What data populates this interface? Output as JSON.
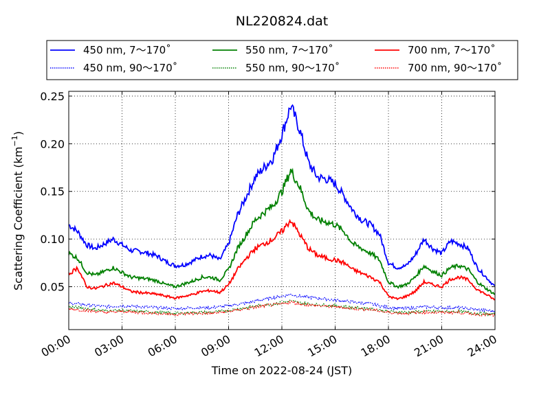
{
  "chart_data": {
    "type": "line",
    "title": "NL220824.dat",
    "xlabel": "Time on 2022-08-24 (JST)",
    "ylabel": "Scattering Coefficient (km",
    "ylabel_sup": "−1",
    "ylabel_end": ")",
    "xlim": [
      0,
      24
    ],
    "ylim": [
      0.005,
      0.255
    ],
    "x_ticks": [
      0,
      3,
      6,
      9,
      12,
      15,
      18,
      21,
      24
    ],
    "x_tick_labels": [
      "00:00",
      "03:00",
      "06:00",
      "09:00",
      "12:00",
      "15:00",
      "18:00",
      "21:00",
      "24:00"
    ],
    "y_ticks": [
      0.05,
      0.1,
      0.15,
      0.2,
      0.25
    ],
    "y_tick_labels": [
      "0.05",
      "0.10",
      "0.15",
      "0.20",
      "0.25"
    ],
    "grid": true,
    "legend_placement": "top-outside",
    "series": [
      {
        "name": "450 nm, 7～170˚",
        "color": "#0000ff",
        "style": "solid",
        "x": [
          0,
          0.5,
          1,
          1.5,
          2,
          2.5,
          3,
          3.5,
          4,
          4.5,
          5,
          5.5,
          6,
          6.5,
          7,
          7.5,
          8,
          8.5,
          9,
          9.5,
          10,
          10.5,
          11,
          11.5,
          12,
          12.5,
          13,
          13.5,
          14,
          14.5,
          15,
          15.5,
          16,
          16.5,
          17,
          17.5,
          18,
          18.5,
          19,
          19.5,
          20,
          20.5,
          21,
          21.5,
          22,
          22.5,
          23,
          23.5,
          24
        ],
        "y": [
          0.115,
          0.108,
          0.094,
          0.09,
          0.095,
          0.1,
          0.094,
          0.088,
          0.087,
          0.085,
          0.082,
          0.076,
          0.072,
          0.073,
          0.077,
          0.082,
          0.083,
          0.078,
          0.095,
          0.125,
          0.145,
          0.165,
          0.175,
          0.185,
          0.21,
          0.24,
          0.215,
          0.18,
          0.165,
          0.163,
          0.158,
          0.145,
          0.13,
          0.12,
          0.115,
          0.105,
          0.075,
          0.07,
          0.072,
          0.083,
          0.1,
          0.09,
          0.085,
          0.098,
          0.095,
          0.09,
          0.07,
          0.06,
          0.05
        ]
      },
      {
        "name": "450 nm, 90～170˚",
        "color": "#0000ff",
        "style": "dotted",
        "x": [
          0,
          1,
          2,
          3,
          4,
          5,
          6,
          7,
          8,
          9,
          10,
          11,
          12,
          12.5,
          13,
          14,
          15,
          16,
          17,
          18,
          19,
          20,
          21,
          22,
          23,
          24
        ],
        "y": [
          0.033,
          0.031,
          0.029,
          0.03,
          0.029,
          0.028,
          0.027,
          0.028,
          0.028,
          0.03,
          0.033,
          0.037,
          0.04,
          0.042,
          0.04,
          0.038,
          0.036,
          0.034,
          0.032,
          0.028,
          0.027,
          0.029,
          0.028,
          0.028,
          0.026,
          0.024
        ]
      },
      {
        "name": "550 nm, 7～170˚",
        "color": "#008000",
        "style": "solid",
        "x": [
          0,
          0.5,
          1,
          1.5,
          2,
          2.5,
          3,
          3.5,
          4,
          4.5,
          5,
          5.5,
          6,
          6.5,
          7,
          7.5,
          8,
          8.5,
          9,
          9.5,
          10,
          10.5,
          11,
          11.5,
          12,
          12.5,
          13,
          13.5,
          14,
          14.5,
          15,
          15.5,
          16,
          16.5,
          17,
          17.5,
          18,
          18.5,
          19,
          19.5,
          20,
          20.5,
          21,
          21.5,
          22,
          22.5,
          23,
          23.5,
          24
        ],
        "y": [
          0.085,
          0.08,
          0.065,
          0.062,
          0.066,
          0.07,
          0.065,
          0.06,
          0.059,
          0.058,
          0.056,
          0.052,
          0.05,
          0.053,
          0.056,
          0.06,
          0.06,
          0.057,
          0.068,
          0.09,
          0.105,
          0.12,
          0.128,
          0.135,
          0.15,
          0.172,
          0.155,
          0.13,
          0.12,
          0.118,
          0.115,
          0.108,
          0.095,
          0.09,
          0.085,
          0.078,
          0.055,
          0.05,
          0.052,
          0.06,
          0.072,
          0.066,
          0.062,
          0.07,
          0.072,
          0.068,
          0.055,
          0.048,
          0.042
        ]
      },
      {
        "name": "550 nm, 90～170˚",
        "color": "#008000",
        "style": "dotted",
        "x": [
          0,
          1,
          2,
          3,
          4,
          5,
          6,
          7,
          8,
          9,
          10,
          11,
          12,
          12.5,
          13,
          14,
          15,
          16,
          17,
          18,
          19,
          20,
          21,
          22,
          23,
          24
        ],
        "y": [
          0.029,
          0.027,
          0.025,
          0.025,
          0.024,
          0.023,
          0.022,
          0.023,
          0.023,
          0.025,
          0.028,
          0.031,
          0.033,
          0.035,
          0.033,
          0.031,
          0.03,
          0.028,
          0.027,
          0.024,
          0.023,
          0.024,
          0.024,
          0.024,
          0.022,
          0.021
        ]
      },
      {
        "name": "700 nm, 7～170˚",
        "color": "#ff0000",
        "style": "solid",
        "x": [
          0,
          0.5,
          1,
          1.5,
          2,
          2.5,
          3,
          3.5,
          4,
          4.5,
          5,
          5.5,
          6,
          6.5,
          7,
          7.5,
          8,
          8.5,
          9,
          9.5,
          10,
          10.5,
          11,
          11.5,
          12,
          12.5,
          13,
          13.5,
          14,
          14.5,
          15,
          15.5,
          16,
          16.5,
          17,
          17.5,
          18,
          18.5,
          19,
          19.5,
          20,
          20.5,
          21,
          21.5,
          22,
          22.5,
          23,
          23.5,
          24
        ],
        "y": [
          0.063,
          0.07,
          0.05,
          0.048,
          0.051,
          0.054,
          0.05,
          0.045,
          0.044,
          0.043,
          0.042,
          0.04,
          0.038,
          0.04,
          0.042,
          0.045,
          0.046,
          0.044,
          0.052,
          0.068,
          0.08,
          0.09,
          0.095,
          0.1,
          0.108,
          0.12,
          0.105,
          0.09,
          0.083,
          0.08,
          0.078,
          0.075,
          0.068,
          0.064,
          0.06,
          0.055,
          0.04,
          0.037,
          0.04,
          0.045,
          0.055,
          0.052,
          0.05,
          0.058,
          0.06,
          0.057,
          0.047,
          0.042,
          0.036
        ]
      },
      {
        "name": "700 nm, 90～170˚",
        "color": "#ff0000",
        "style": "dotted",
        "x": [
          0,
          1,
          2,
          3,
          4,
          5,
          6,
          7,
          8,
          9,
          10,
          11,
          12,
          12.5,
          13,
          14,
          15,
          16,
          17,
          18,
          19,
          20,
          21,
          22,
          23,
          24
        ],
        "y": [
          0.027,
          0.025,
          0.023,
          0.024,
          0.023,
          0.022,
          0.021,
          0.022,
          0.022,
          0.024,
          0.027,
          0.03,
          0.032,
          0.034,
          0.032,
          0.03,
          0.029,
          0.027,
          0.026,
          0.023,
          0.022,
          0.023,
          0.023,
          0.023,
          0.021,
          0.02
        ]
      }
    ]
  }
}
